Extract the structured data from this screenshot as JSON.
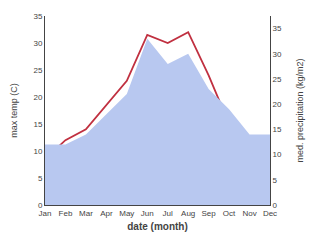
{
  "chart_data": {
    "type": "line",
    "categories": [
      "Jan",
      "Feb",
      "Mar",
      "Apr",
      "May",
      "Jun",
      "Jul",
      "Aug",
      "Sep",
      "Oct",
      "Nov",
      "Dec"
    ],
    "series": [
      {
        "type": "area",
        "axis": "y2",
        "color": "#b8c8f0",
        "values": [
          12.0,
          12.0,
          14.0,
          18.0,
          22.0,
          33.0,
          28.0,
          30.0,
          23.0,
          19.0,
          14.0,
          14.0
        ]
      },
      {
        "type": "line",
        "color": "#c03040",
        "values": [
          8.5,
          12.0,
          14.0,
          18.5,
          23.0,
          31.5,
          30.0,
          32.0,
          24.0,
          15.0,
          9.0,
          8.5
        ]
      }
    ],
    "xlabel": "date (month)",
    "ylabel": "max temp (C)",
    "y2label": "med. precipitation (kg/m2)",
    "ylim": [
      0,
      35
    ],
    "yticks": [
      0,
      5,
      10,
      15,
      20,
      25,
      30,
      35
    ],
    "y2lim": [
      0,
      37.5
    ],
    "y2ticks": [
      0,
      5,
      10,
      15,
      20,
      25,
      30,
      35
    ],
    "grid": false
  }
}
